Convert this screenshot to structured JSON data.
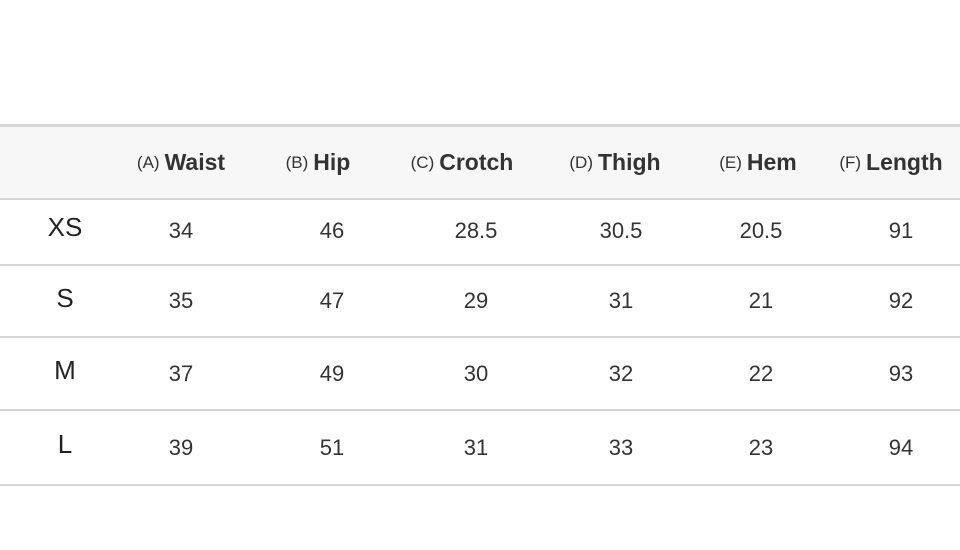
{
  "table": {
    "columns": [
      {
        "prefix": "(A)",
        "label": "Waist"
      },
      {
        "prefix": "(B)",
        "label": "Hip"
      },
      {
        "prefix": "(C)",
        "label": "Crotch"
      },
      {
        "prefix": "(D)",
        "label": "Thigh"
      },
      {
        "prefix": "(E)",
        "label": "Hem"
      },
      {
        "prefix": "(F)",
        "label": "Length"
      }
    ],
    "rows": [
      {
        "size": "XS",
        "values": [
          34,
          46,
          28.5,
          30.5,
          20.5,
          91
        ]
      },
      {
        "size": "S",
        "values": [
          35,
          47,
          29,
          31,
          21,
          92
        ]
      },
      {
        "size": "M",
        "values": [
          37,
          49,
          30,
          32,
          22,
          93
        ]
      },
      {
        "size": "L",
        "values": [
          39,
          51,
          31,
          33,
          23,
          94
        ]
      }
    ]
  }
}
